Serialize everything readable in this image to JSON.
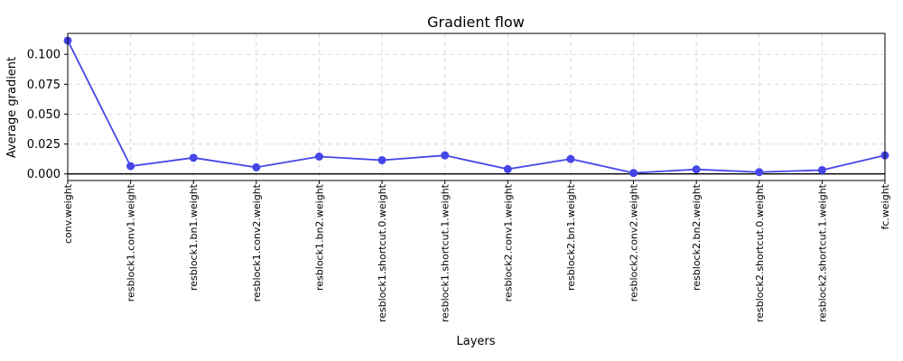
{
  "chart_data": {
    "type": "line",
    "title": "Gradient flow",
    "xlabel": "Layers",
    "ylabel": "Average gradient",
    "categories": [
      "conv.weight",
      "resblock1.conv1.weight",
      "resblock1.bn1.weight",
      "resblock1.conv2.weight",
      "resblock1.bn2.weight",
      "resblock1.shortcut.0.weight",
      "resblock1.shortcut.1.weight",
      "resblock2.conv1.weight",
      "resblock2.bn1.weight",
      "resblock2.conv2.weight",
      "resblock2.bn2.weight",
      "resblock2.shortcut.0.weight",
      "resblock2.shortcut.1.weight",
      "fc.weight"
    ],
    "series": [
      {
        "values": [
          0.1115,
          0.0065,
          0.0135,
          0.0055,
          0.0145,
          0.0115,
          0.0155,
          0.004,
          0.0125,
          0.0008,
          0.0038,
          0.0015,
          0.0032,
          0.0155
        ],
        "color": "#4545e8"
      }
    ],
    "yticks": [
      "0.000",
      "0.025",
      "0.050",
      "0.075",
      "0.100"
    ],
    "ytick_values": [
      0,
      0.025,
      0.05,
      0.075,
      0.1
    ],
    "ylim": [
      -0.0055,
      0.1175
    ],
    "grid": true,
    "zero_line": true
  }
}
